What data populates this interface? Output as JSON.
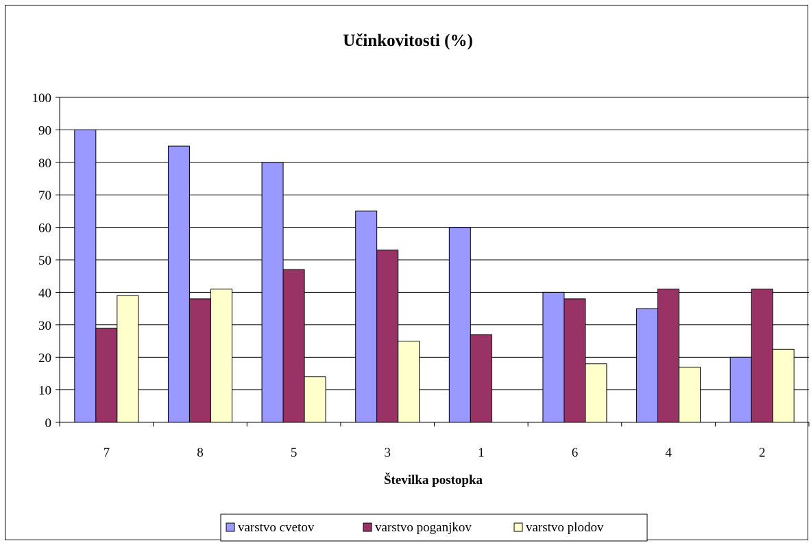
{
  "chart_data": {
    "type": "bar",
    "title": "Učinkovitosti (%)",
    "xlabel": "Številka postopka",
    "ylabel": "",
    "ylim": [
      0,
      100
    ],
    "yticks": [
      0,
      10,
      20,
      30,
      40,
      50,
      60,
      70,
      80,
      90,
      100
    ],
    "grid": true,
    "legend_position": "bottom",
    "categories": [
      "7",
      "8",
      "5",
      "3",
      "1",
      "6",
      "4",
      "2"
    ],
    "series": [
      {
        "name": "varstvo cvetov",
        "color": "#9999ff",
        "values": [
          90,
          85,
          80,
          65,
          60,
          40,
          35,
          20
        ]
      },
      {
        "name": "varstvo poganjkov",
        "color": "#993366",
        "values": [
          29,
          38,
          47,
          53,
          27,
          38,
          41,
          41
        ]
      },
      {
        "name": "varstvo plodov",
        "color": "#ffffcc",
        "values": [
          39,
          41,
          14,
          25,
          0,
          18,
          17,
          22.5
        ]
      }
    ]
  }
}
